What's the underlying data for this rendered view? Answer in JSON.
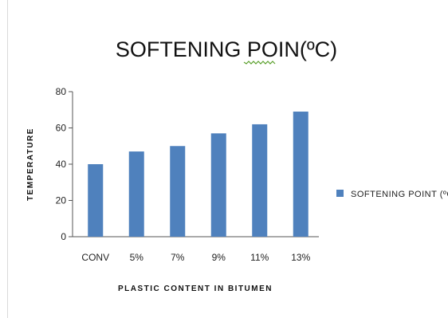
{
  "colors": {
    "bar": "#4f81bd",
    "axis": "#555555",
    "background": "#ffffff"
  },
  "chart_data": {
    "type": "bar",
    "title": "SOFTENING POIN(ºC)",
    "xlabel": "PLASTIC CONTENT IN BITUMEN",
    "ylabel": "TEMPERATURE",
    "categories": [
      "CONV",
      "5%",
      "7%",
      "9%",
      "11%",
      "13%"
    ],
    "series": [
      {
        "name": "SOFTENING POINT (ºC)",
        "values": [
          40,
          47,
          50,
          57,
          62,
          69
        ]
      }
    ],
    "ylim": [
      0,
      80
    ],
    "yticks": [
      0,
      20,
      40,
      60,
      80
    ],
    "grid": false,
    "legend": "right"
  }
}
